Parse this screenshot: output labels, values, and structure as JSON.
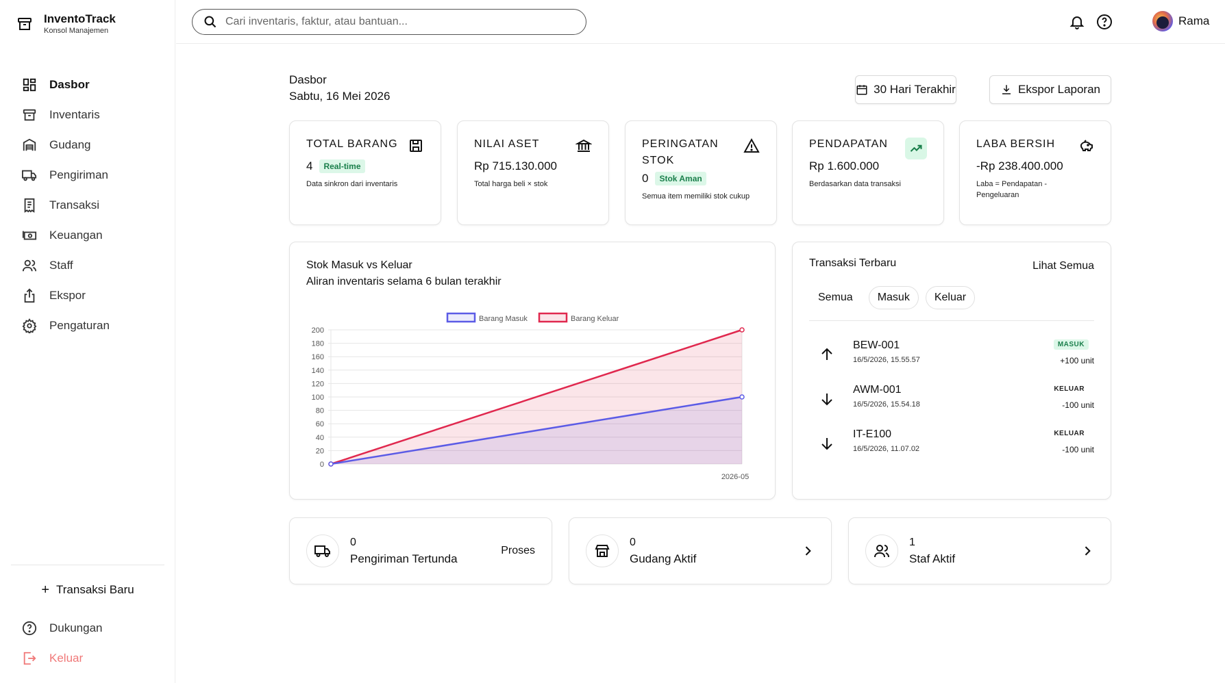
{
  "brand": {
    "name": "InventoTrack",
    "subtitle": "Konsol Manajemen"
  },
  "sidebar": {
    "items": [
      {
        "label": "Dasbor",
        "icon": "dashboard-icon",
        "active": true
      },
      {
        "label": "Inventaris",
        "icon": "archive-icon"
      },
      {
        "label": "Gudang",
        "icon": "warehouse-icon"
      },
      {
        "label": "Pengiriman",
        "icon": "truck-icon"
      },
      {
        "label": "Transaksi",
        "icon": "receipt-icon"
      },
      {
        "label": "Keuangan",
        "icon": "money-icon"
      },
      {
        "label": "Staff",
        "icon": "users-icon"
      },
      {
        "label": "Ekspor",
        "icon": "share-icon"
      },
      {
        "label": "Pengaturan",
        "icon": "gear-icon"
      }
    ],
    "new_transaction": "Transaksi Baru",
    "support": "Dukungan",
    "logout": "Keluar"
  },
  "search": {
    "placeholder": "Cari inventaris, faktur, atau bantuan..."
  },
  "user": {
    "name": "Rama"
  },
  "page": {
    "title": "Dasbor",
    "date": "Sabtu, 16 Mei 2026"
  },
  "actions": {
    "range": "30 Hari Terakhir",
    "export": "Ekspor Laporan"
  },
  "stats": [
    {
      "label": "TOTAL BARANG",
      "value": "4",
      "badge": "Real-time",
      "sub": "Data sinkron dari inventaris",
      "icon": "save-icon"
    },
    {
      "label": "NILAI ASET",
      "value": "Rp 715.130.000",
      "sub": "Total harga beli × stok",
      "icon": "bank-icon"
    },
    {
      "label": "PERINGATAN STOK",
      "value": "0",
      "badge": "Stok Aman",
      "sub": "Semua item memiliki stok cukup",
      "icon": "warning-icon"
    },
    {
      "label": "PENDAPATAN",
      "value": "Rp 1.600.000",
      "sub": "Berdasarkan data transaksi",
      "icon": "trending-up-icon"
    },
    {
      "label": "LABA BERSIH",
      "value": "-Rp 238.400.000",
      "sub": "Laba = Pendapatan - Pengeluaran",
      "icon": "piggy-bank-icon"
    }
  ],
  "chart": {
    "title": "Stok Masuk vs Keluar",
    "subtitle": "Aliran inventaris selama 6 bulan terakhir"
  },
  "chart_data": {
    "type": "area",
    "x": [
      "",
      "2026-05"
    ],
    "series": [
      {
        "name": "Barang Masuk",
        "values": [
          0,
          100
        ],
        "color": "#5b5be6"
      },
      {
        "name": "Barang Keluar",
        "values": [
          0,
          200
        ],
        "color": "#e0284e"
      }
    ],
    "yticks": [
      0,
      20,
      40,
      60,
      80,
      100,
      120,
      140,
      160,
      180,
      200
    ],
    "ylim": [
      0,
      200
    ],
    "legend": "top-center",
    "grid": true
  },
  "transactions": {
    "title": "Transaksi Terbaru",
    "view_all": "Lihat Semua",
    "tabs": [
      "Semua",
      "Masuk",
      "Keluar"
    ],
    "rows": [
      {
        "code": "BEW-001",
        "time": "16/5/2026, 15.55.57",
        "type": "MASUK",
        "qty": "+100 unit",
        "direction": "up"
      },
      {
        "code": "AWM-001",
        "time": "16/5/2026, 15.54.18",
        "type": "KELUAR",
        "qty": "-100 unit",
        "direction": "down"
      },
      {
        "code": "IT-E100",
        "time": "16/5/2026, 11.07.02",
        "type": "KELUAR",
        "qty": "-100 unit",
        "direction": "down"
      }
    ]
  },
  "summary": [
    {
      "count": "0",
      "label": "Pengiriman Tertunda",
      "action": "Proses",
      "icon": "truck-icon"
    },
    {
      "count": "0",
      "label": "Gudang Aktif",
      "icon": "store-icon"
    },
    {
      "count": "1",
      "label": "Staf Aktif",
      "icon": "users-icon"
    }
  ],
  "colors": {
    "accent_green": "#1a7f4b",
    "masuk": "#5b5be6",
    "keluar": "#e0284e",
    "logout": "#f07878"
  }
}
